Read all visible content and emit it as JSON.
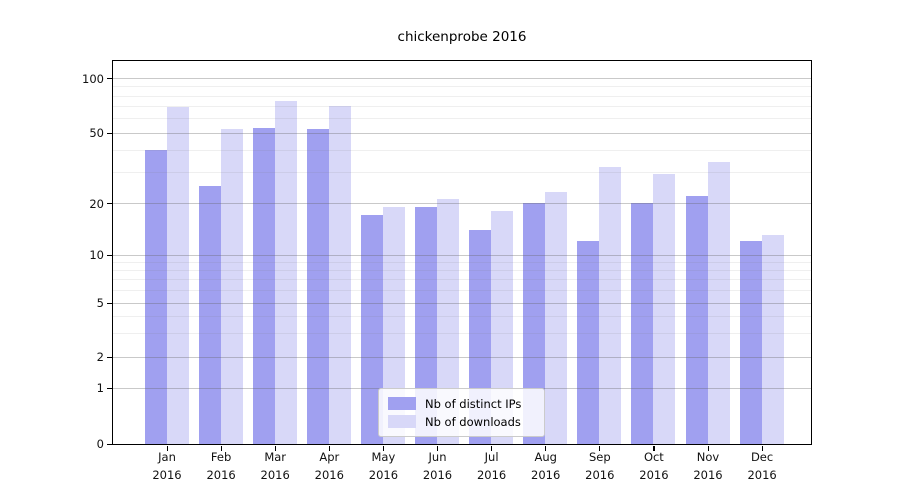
{
  "chart_data": {
    "type": "bar",
    "title": "chickenprobe 2016",
    "categories": [
      "Jan 2016",
      "Feb 2016",
      "Mar 2016",
      "Apr 2016",
      "May 2016",
      "Jun 2016",
      "Jul 2016",
      "Aug 2016",
      "Sep 2016",
      "Oct 2016",
      "Nov 2016",
      "Dec 2016"
    ],
    "series": [
      {
        "name": "Nb of distinct IPs",
        "color": "#a0a0f0",
        "values": [
          40,
          25,
          53,
          52,
          17,
          19,
          14,
          20,
          12,
          20,
          22,
          12
        ]
      },
      {
        "name": "Nb of downloads",
        "color": "#d8d8f8",
        "values": [
          69,
          52,
          75,
          70,
          19,
          21,
          18,
          23,
          32,
          29,
          34,
          13
        ]
      }
    ],
    "xlabel": "",
    "ylabel": "",
    "yscale": "symlog",
    "ylim": [
      0,
      125
    ],
    "yticks": [
      0,
      1,
      2,
      5,
      10,
      20,
      50,
      100
    ],
    "yticks_minor": [
      3,
      4,
      6,
      7,
      8,
      9,
      30,
      40,
      60,
      70,
      80,
      90
    ],
    "grid": true,
    "legend_position": "lower center"
  }
}
